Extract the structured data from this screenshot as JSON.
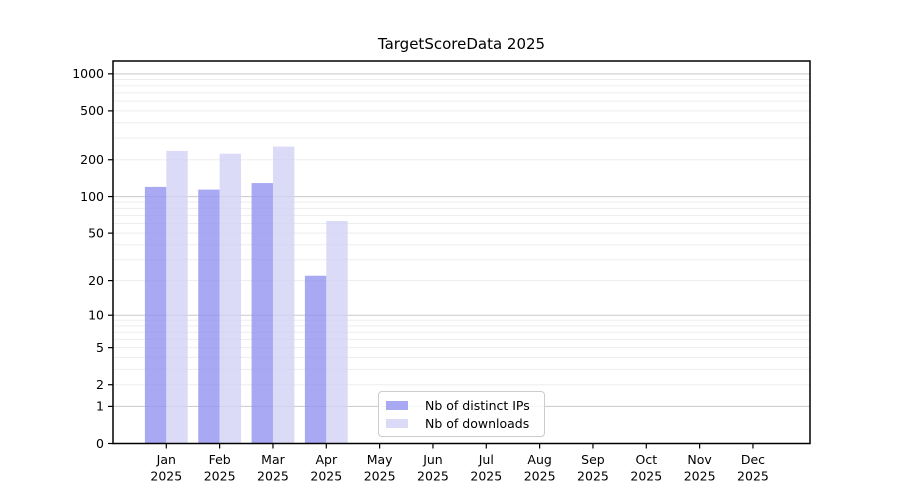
{
  "chart_data": {
    "type": "bar",
    "title": "TargetScoreData 2025",
    "yscale": "log1p",
    "ylim": [
      0,
      1260
    ],
    "y_ticks": [
      0,
      1,
      2,
      5,
      10,
      20,
      50,
      100,
      200,
      500,
      1000
    ],
    "grid": {
      "minor": true,
      "major_decades": [
        1,
        10,
        100,
        1000
      ],
      "legend_position": "lower center"
    },
    "categories": [
      "Jan 2025",
      "Feb 2025",
      "Mar 2025",
      "Apr 2025",
      "May 2025",
      "Jun 2025",
      "Jul 2025",
      "Aug 2025",
      "Sep 2025",
      "Oct 2025",
      "Nov 2025",
      "Dec 2025"
    ],
    "series": [
      {
        "name": "Nb of distinct IPs",
        "color": "#a9a9f3",
        "values": [
          120,
          114,
          129,
          22,
          null,
          null,
          null,
          null,
          null,
          null,
          null,
          null
        ]
      },
      {
        "name": "Nb of downloads",
        "color": "#dbdbf8",
        "values": [
          236,
          224,
          256,
          63,
          null,
          null,
          null,
          null,
          null,
          null,
          null,
          null
        ]
      }
    ]
  },
  "colors": {
    "major_grid": "#c9c9c9",
    "minor_grid": "#ededed",
    "axis": "#000000",
    "background": "#ffffff"
  }
}
